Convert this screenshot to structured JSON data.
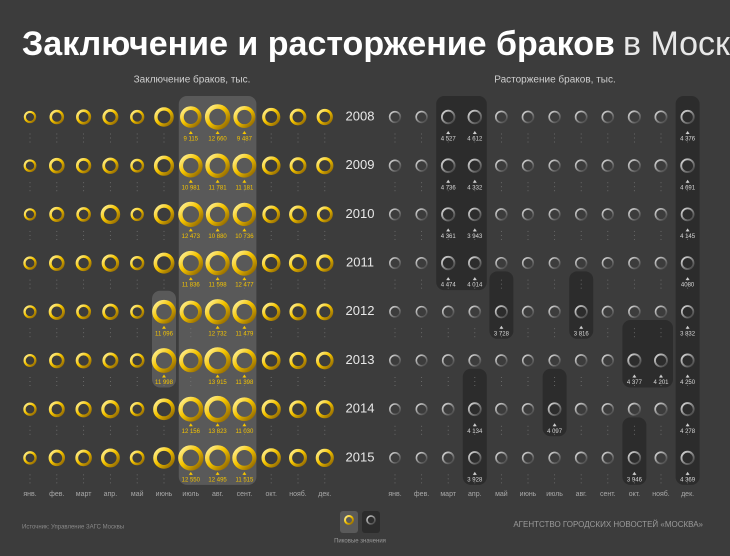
{
  "chart_data": {
    "type": "ring-grid",
    "title_main": "Заключение и расторжение браков",
    "title_light": "в Москве",
    "months": [
      "янв.",
      "фев.",
      "март",
      "апр.",
      "май",
      "июнь",
      "июль",
      "авг.",
      "сент.",
      "окт.",
      "нояб.",
      "дек."
    ],
    "years": [
      2008,
      2009,
      2010,
      2011,
      2012,
      2013,
      2014,
      2015
    ],
    "series": [
      {
        "name": "Заключение браков, тыс.",
        "color": "#f5c400",
        "values": [
          [
            3000,
            4200,
            4500,
            5000,
            4000,
            7500,
            9115,
            12660,
            9487,
            6500,
            5500,
            5200
          ],
          [
            3200,
            4800,
            4600,
            5200,
            3800,
            8000,
            10981,
            11781,
            11181,
            6800,
            5600,
            5800
          ],
          [
            3000,
            4500,
            4200,
            7500,
            3500,
            8200,
            12473,
            10880,
            10736,
            6200,
            6300,
            5000
          ],
          [
            3500,
            4800,
            5000,
            6000,
            4000,
            8600,
            11836,
            11598,
            12477,
            6800,
            6500,
            5900
          ],
          [
            3400,
            5200,
            4400,
            5300,
            3900,
            11096,
            9800,
            12732,
            11479,
            6600,
            5800,
            5600
          ],
          [
            3300,
            4700,
            4900,
            5000,
            4200,
            11998,
            10900,
            13915,
            11398,
            6900,
            5900,
            6100
          ],
          [
            3500,
            5000,
            5200,
            6600,
            4100,
            9300,
            12156,
            13823,
            11030,
            7300,
            6200,
            6400
          ],
          [
            3600,
            5300,
            5400,
            7000,
            4300,
            9200,
            12550,
            12495,
            11515,
            7400,
            6400,
            6500
          ]
        ],
        "value_labels": [
          [
            null,
            null,
            null,
            null,
            null,
            null,
            "9 115",
            "12 660",
            "9 487",
            null,
            null,
            null
          ],
          [
            null,
            null,
            null,
            null,
            null,
            null,
            "10 981",
            "11 781",
            "11 181",
            null,
            null,
            null
          ],
          [
            null,
            null,
            null,
            null,
            null,
            null,
            "12 473",
            "10 880",
            "10 736",
            null,
            null,
            null
          ],
          [
            null,
            null,
            null,
            null,
            null,
            null,
            "11 836",
            "11 598",
            "12 477",
            null,
            null,
            null
          ],
          [
            null,
            null,
            null,
            null,
            null,
            "11 096",
            null,
            "12 732",
            "11 479",
            null,
            null,
            null
          ],
          [
            null,
            null,
            null,
            null,
            null,
            "11 998",
            null,
            "13 915",
            "11 398",
            null,
            null,
            null
          ],
          [
            null,
            null,
            null,
            null,
            null,
            null,
            "12 156",
            "13 823",
            "11 030",
            null,
            null,
            null
          ],
          [
            null,
            null,
            null,
            null,
            null,
            null,
            "12 550",
            "12 495",
            "11 515",
            null,
            null,
            null
          ]
        ]
      },
      {
        "name": "Расторжение браков, тыс.",
        "color": "#a0a0a0",
        "values": [
          [
            3300,
            3400,
            4527,
            4612,
            3600,
            3500,
            3400,
            3600,
            3500,
            3800,
            3700,
            4376
          ],
          [
            3400,
            3300,
            4736,
            4332,
            3500,
            3300,
            3300,
            3500,
            3500,
            3700,
            3800,
            4691
          ],
          [
            3200,
            3300,
            4361,
            3943,
            3400,
            3300,
            3200,
            3400,
            3300,
            3500,
            3600,
            4145
          ],
          [
            3100,
            3200,
            4474,
            4014,
            3300,
            3200,
            3100,
            3300,
            3200,
            3400,
            3500,
            4080
          ],
          [
            3000,
            3100,
            3400,
            3500,
            3728,
            3300,
            3400,
            3816,
            3300,
            3500,
            3400,
            3832
          ],
          [
            3100,
            3200,
            3500,
            3600,
            3400,
            3200,
            3300,
            3500,
            3400,
            4377,
            4201,
            4250
          ],
          [
            3100,
            3200,
            3600,
            4134,
            3500,
            3400,
            4097,
            3600,
            3400,
            3800,
            3900,
            4278
          ],
          [
            3000,
            3100,
            3500,
            3928,
            3400,
            3300,
            3400,
            3500,
            3400,
            3946,
            3700,
            4369
          ]
        ],
        "value_labels": [
          [
            null,
            null,
            "4 527",
            "4 612",
            null,
            null,
            null,
            null,
            null,
            null,
            null,
            "4 376"
          ],
          [
            null,
            null,
            "4 736",
            "4 332",
            null,
            null,
            null,
            null,
            null,
            null,
            null,
            "4 691"
          ],
          [
            null,
            null,
            "4 361",
            "3 943",
            null,
            null,
            null,
            null,
            null,
            null,
            null,
            "4 145"
          ],
          [
            null,
            null,
            "4 474",
            "4 014",
            null,
            null,
            null,
            null,
            null,
            null,
            null,
            "4080"
          ],
          [
            null,
            null,
            null,
            null,
            "3 728",
            null,
            null,
            "3 816",
            null,
            null,
            null,
            "3 832"
          ],
          [
            null,
            null,
            null,
            null,
            null,
            null,
            null,
            null,
            null,
            "4 377",
            "4 201",
            "4 250"
          ],
          [
            null,
            null,
            null,
            "4 134",
            null,
            null,
            "4 097",
            null,
            null,
            null,
            null,
            "4 278"
          ],
          [
            null,
            null,
            null,
            "3 928",
            null,
            null,
            null,
            null,
            null,
            "3 946",
            null,
            "4 369"
          ]
        ]
      }
    ],
    "legend_label": "Пиковые значения",
    "source": "Источник: Управление ЗАГС Москвы",
    "agency": "АГЕНТСТВО ГОРОДСКИХ НОВОСТЕЙ «МОСКВА»"
  }
}
